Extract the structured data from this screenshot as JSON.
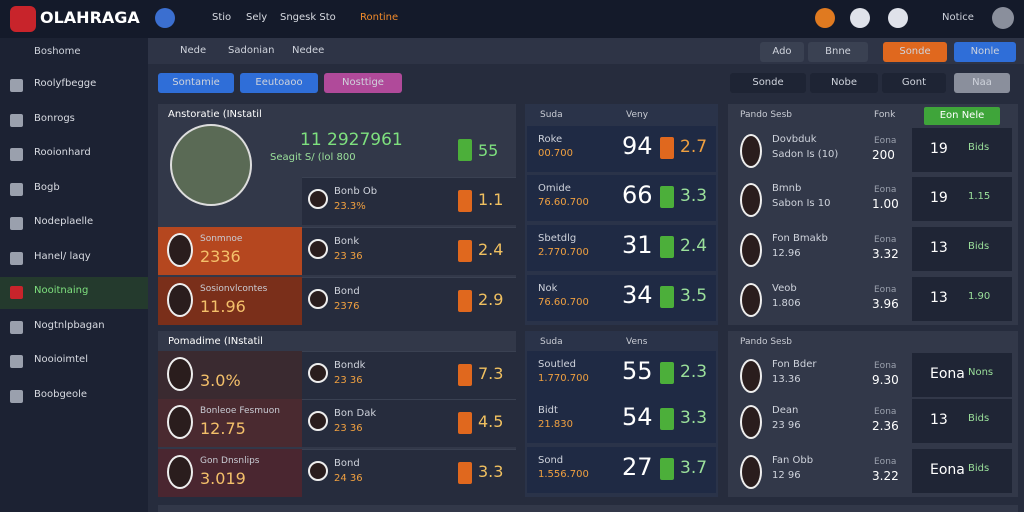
{
  "topbar": {
    "logo": "OLAHRAGA",
    "nav": [
      "Stio",
      "Sely",
      "Sngesk Sto",
      "Rontine"
    ],
    "user": "Notice"
  },
  "sidebar": {
    "heading": "Boshome",
    "items": [
      "Roolyfbegge",
      "Bonrogs",
      "Rooionhard",
      "Bogb",
      "Nodeplaelle",
      "Hanel/ laqy",
      "Nooitnaing",
      "Nogtnlpbagan",
      "Nooioimtel",
      "Boobgeole"
    ]
  },
  "subheader": {
    "crumbs": [
      "Nede",
      "Sadonian",
      "Nedee"
    ],
    "actions": [
      "Ado",
      "Bnne",
      "Sonde",
      "Nonle"
    ]
  },
  "filters": {
    "tags": [
      "Sontamie",
      "Eeutoaoo",
      "Nosttige"
    ],
    "selects": [
      "Sonde",
      "Nobe",
      "Gont",
      "Naa"
    ]
  },
  "left": {
    "sections": [
      {
        "title": "Anstoratie (INstatil",
        "featured": {
          "value": "11 2927961",
          "sub": "Seagit S/ (lol 800",
          "odd": "55"
        },
        "rows": [
          {
            "team": "Bonb Ob",
            "team_value": "23.3%",
            "odd": "1.1"
          },
          {
            "name": "Sonmnoe",
            "value": "2336",
            "team": "Bonk",
            "team_value": "23 36",
            "odd": "2.4"
          },
          {
            "name": "Sosionvlcontes",
            "value": "11.96",
            "team": "Bond",
            "team_value": "2376",
            "odd": "2.9"
          }
        ]
      },
      {
        "title": "Pomadime (INstatil",
        "rows": [
          {
            "value": "3.0%",
            "team": "Bondk",
            "team_value": "23 36",
            "odd": "7.3"
          },
          {
            "name": "Bonleoe Fesmuon",
            "value": "12.75",
            "team": "Bon Dak",
            "team_value": "23 36",
            "odd": "4.5"
          },
          {
            "name": "Gon Dnsnlips",
            "value": "3.019",
            "team": "Bond",
            "team_value": "24 36",
            "odd": "3.3"
          }
        ]
      }
    ]
  },
  "middle": {
    "sections": [
      {
        "headers": [
          "Suda",
          "Veny"
        ],
        "rows": [
          {
            "label": "Roke",
            "sub": "00.700",
            "score": "94",
            "odd": "2.7"
          },
          {
            "label": "Omide",
            "sub": "76.60.700",
            "score": "66",
            "odd": "3.3"
          },
          {
            "label": "Sbetdlg",
            "sub": "2.770.700",
            "score": "31",
            "odd": "2.4"
          },
          {
            "label": "Nok",
            "sub": "76.60.700",
            "score": "34",
            "odd": "3.5"
          }
        ]
      },
      {
        "headers": [
          "Suda",
          "Vens"
        ],
        "rows": [
          {
            "label": "Soutled",
            "sub": "1.770.700",
            "score": "55",
            "odd": "2.3"
          },
          {
            "label": "Bidt",
            "sub": "21.830",
            "score": "54",
            "odd": "3.3"
          },
          {
            "label": "Sond",
            "sub": "1.556.700",
            "score": "27",
            "odd": "3.7"
          }
        ]
      }
    ]
  },
  "right": {
    "sections": [
      {
        "headers": [
          "Pando Sesb",
          "Fonk"
        ],
        "button": "Eon Nele",
        "rows": [
          {
            "team": "Dovbduk",
            "sub": "Sadon Is (10)",
            "label": "Eona",
            "value": "200",
            "score": "19",
            "odd": "Bids"
          },
          {
            "team": "Bmnb",
            "sub": "Sabon Is 10",
            "label": "Eona",
            "value": "1.00",
            "score": "19",
            "odd": "1.15"
          },
          {
            "team": "Fon Bmakb",
            "sub": "12.96",
            "label": "Eona",
            "value": "3.32",
            "score": "13",
            "odd": "Bids"
          },
          {
            "team": "Veob",
            "sub": "1.806",
            "label": "Eona",
            "value": "3.96",
            "score": "13",
            "odd": "1.90"
          }
        ]
      },
      {
        "headers": [
          "Pando Sesb"
        ],
        "rows": [
          {
            "team": "Fon Bder",
            "sub": "13.36",
            "label": "Eona",
            "value": "9.30",
            "score": "Eona",
            "odd": "Nons"
          },
          {
            "team": "Dean",
            "sub": "23 96",
            "label": "Eona",
            "value": "2.36",
            "score": "13",
            "odd": "Bids"
          },
          {
            "team": "Fan Obb",
            "sub": "12 96",
            "label": "Eona",
            "value": "3.22",
            "score": "Eona",
            "odd": "Bids"
          }
        ]
      }
    ]
  }
}
